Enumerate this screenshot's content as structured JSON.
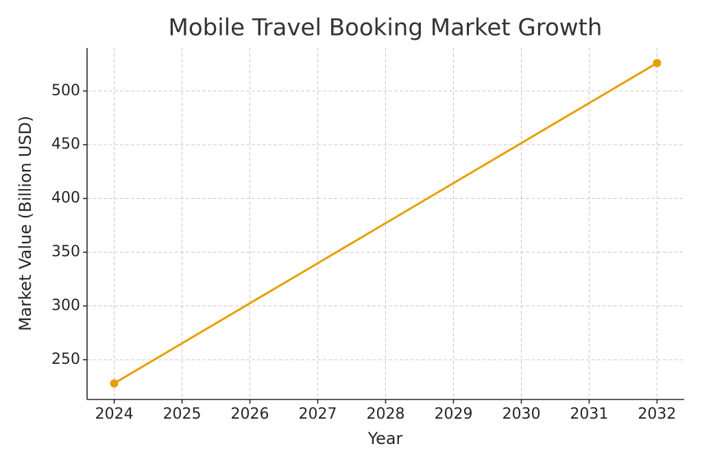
{
  "chart_data": {
    "type": "line",
    "title": "Mobile Travel Booking Market Growth",
    "x_label": "Year",
    "y_label": "Market Value (Billion USD)",
    "x": [
      2024,
      2032
    ],
    "values": [
      228,
      526
    ],
    "color": "#e69f00",
    "xlim": [
      2023.6,
      2032.4
    ],
    "xticks": [
      2024,
      2025,
      2026,
      2027,
      2028,
      2029,
      2030,
      2031,
      2032
    ],
    "ylim": [
      213,
      540
    ],
    "yticks": [
      250,
      300,
      350,
      400,
      450,
      500
    ],
    "grid": true
  }
}
